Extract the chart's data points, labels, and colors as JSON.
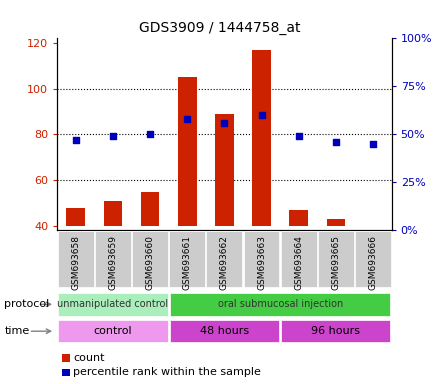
{
  "title": "GDS3909 / 1444758_at",
  "samples": [
    "GSM693658",
    "GSM693659",
    "GSM693660",
    "GSM693661",
    "GSM693662",
    "GSM693663",
    "GSM693664",
    "GSM693665",
    "GSM693666"
  ],
  "count_values": [
    48,
    51,
    55,
    105,
    89,
    117,
    47,
    43,
    40
  ],
  "percentile_values": [
    47,
    49,
    50,
    58,
    56,
    60,
    49,
    46,
    45
  ],
  "ylim_left": [
    38,
    122
  ],
  "ylim_right": [
    0,
    100
  ],
  "yticks_left": [
    40,
    60,
    80,
    100,
    120
  ],
  "yticks_right": [
    0,
    25,
    50,
    75,
    100
  ],
  "ytick_labels_right": [
    "0%",
    "25%",
    "50%",
    "75%",
    "100%"
  ],
  "bar_color": "#cc2200",
  "dot_color": "#0000bb",
  "bar_bottom": 40,
  "protocol_groups": [
    {
      "label": "unmanipulated control",
      "start": 0,
      "end": 3,
      "color": "#aaeebb"
    },
    {
      "label": "oral submucosal injection",
      "start": 3,
      "end": 9,
      "color": "#44cc44"
    }
  ],
  "time_groups": [
    {
      "label": "control",
      "start": 0,
      "end": 3,
      "color": "#ee99ee"
    },
    {
      "label": "48 hours",
      "start": 3,
      "end": 6,
      "color": "#cc44cc"
    },
    {
      "label": "96 hours",
      "start": 6,
      "end": 9,
      "color": "#cc44cc"
    }
  ],
  "legend_count_label": "count",
  "legend_pct_label": "percentile rank within the sample",
  "bar_color_red": "#cc2200",
  "dot_color_blue": "#0000bb",
  "grid_lines_at": [
    60,
    80,
    100
  ],
  "facecolor": "#ffffff"
}
